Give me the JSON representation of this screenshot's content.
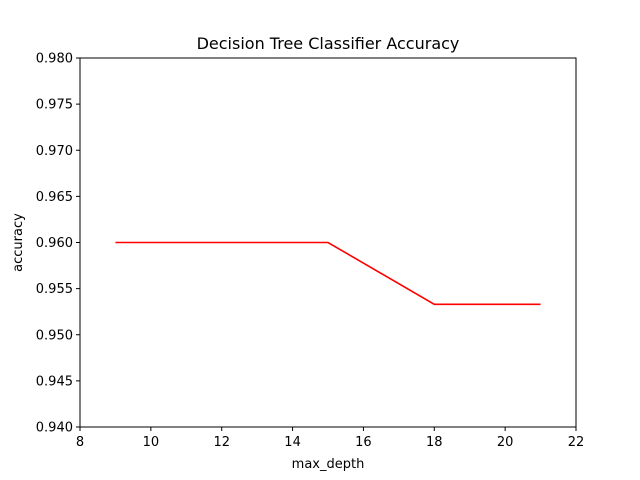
{
  "chart_data": {
    "type": "line",
    "title": "Decision Tree Classifier Accuracy",
    "xlabel": "max_depth",
    "ylabel": "accuracy",
    "xlim": [
      8,
      22
    ],
    "ylim": [
      0.94,
      0.98
    ],
    "xticks": [
      8,
      10,
      12,
      14,
      16,
      18,
      20,
      22
    ],
    "yticks": [
      0.94,
      0.945,
      0.95,
      0.955,
      0.96,
      0.965,
      0.97,
      0.975,
      0.98
    ],
    "xtick_labels": [
      "8",
      "10",
      "12",
      "14",
      "16",
      "18",
      "20",
      "22"
    ],
    "ytick_labels": [
      "0.940",
      "0.945",
      "0.950",
      "0.955",
      "0.960",
      "0.965",
      "0.970",
      "0.975",
      "0.980"
    ],
    "grid": false,
    "series": [
      {
        "color": "#ff0000",
        "x": [
          9,
          12,
          15,
          18,
          21
        ],
        "y": [
          0.96,
          0.96,
          0.96,
          0.9533,
          0.9533
        ]
      }
    ]
  }
}
